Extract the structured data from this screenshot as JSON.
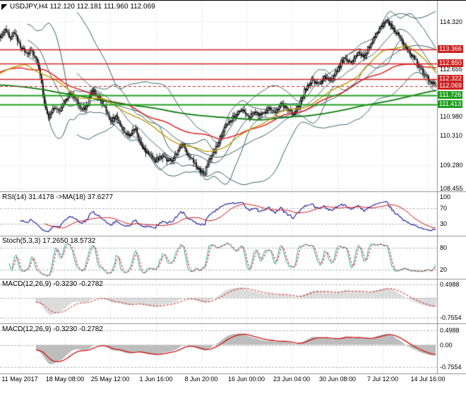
{
  "icons": {
    "cursor_arrow": "◤"
  },
  "colors": {
    "background": "#ffffff",
    "grid": "#d4d4d4",
    "resistance_line": "#cc2222",
    "support_line": "#1f9e1f",
    "bollinger": "#2f5f5f"
  },
  "chart_data": {
    "type": "candlestick",
    "symbol": "USDJPY",
    "timeframe": "H4",
    "platform_header": "USDJPY,H4 112.120 112.181 111.960 112.069",
    "ohlc": {
      "open": "112.120",
      "high": "112.181",
      "low": "111.960",
      "close": "112.069"
    },
    "grid_color": "#d4d4d4",
    "x_axis": {
      "labels": [
        "11 May 2017",
        "18 May 08:00",
        "25 May 12:00",
        "1 Jun 16:00",
        "8 Jun 20:00",
        "16 Jun 00:00",
        "23 Jun 04:00",
        "30 Jun 08:00",
        "7 Jul 12:00",
        "14 Jul 16:00"
      ]
    },
    "main_panel": {
      "bars": 310,
      "y_range": [
        108.35,
        114.95
      ],
      "y_ticks": [
        {
          "label": "114.320",
          "value": 114.32
        },
        {
          "label": "112.655",
          "value": 112.655
        },
        {
          "label": "110.980",
          "value": 110.98
        },
        {
          "label": "110.310",
          "value": 110.31
        },
        {
          "label": "109.280",
          "value": 109.28
        },
        {
          "label": "108.455",
          "value": 108.455
        }
      ],
      "close_keyframes": [
        [
          0.0,
          113.8
        ],
        [
          0.01,
          114.15
        ],
        [
          0.022,
          113.7
        ],
        [
          0.032,
          113.95
        ],
        [
          0.045,
          113.45
        ],
        [
          0.058,
          113.2
        ],
        [
          0.07,
          113.35
        ],
        [
          0.082,
          112.95
        ],
        [
          0.092,
          112.4
        ],
        [
          0.1,
          111.4
        ],
        [
          0.11,
          110.95
        ],
        [
          0.122,
          111.35
        ],
        [
          0.135,
          111.1
        ],
        [
          0.15,
          111.6
        ],
        [
          0.165,
          111.8
        ],
        [
          0.18,
          111.35
        ],
        [
          0.195,
          111.2
        ],
        [
          0.21,
          111.9
        ],
        [
          0.225,
          111.7
        ],
        [
          0.24,
          111.3
        ],
        [
          0.252,
          110.8
        ],
        [
          0.265,
          110.95
        ],
        [
          0.28,
          110.5
        ],
        [
          0.295,
          110.35
        ],
        [
          0.31,
          110.55
        ],
        [
          0.325,
          109.9
        ],
        [
          0.34,
          109.65
        ],
        [
          0.355,
          109.45
        ],
        [
          0.37,
          109.6
        ],
        [
          0.385,
          109.4
        ],
        [
          0.4,
          109.55
        ],
        [
          0.415,
          110.05
        ],
        [
          0.43,
          109.7
        ],
        [
          0.442,
          109.4
        ],
        [
          0.455,
          109.1
        ],
        [
          0.468,
          108.95
        ],
        [
          0.48,
          109.5
        ],
        [
          0.495,
          109.85
        ],
        [
          0.51,
          110.45
        ],
        [
          0.525,
          110.85
        ],
        [
          0.54,
          111.05
        ],
        [
          0.555,
          111.3
        ],
        [
          0.57,
          110.95
        ],
        [
          0.585,
          111.15
        ],
        [
          0.6,
          111.0
        ],
        [
          0.615,
          111.3
        ],
        [
          0.63,
          111.15
        ],
        [
          0.645,
          111.4
        ],
        [
          0.66,
          111.25
        ],
        [
          0.672,
          111.1
        ],
        [
          0.685,
          111.35
        ],
        [
          0.7,
          111.95
        ],
        [
          0.715,
          112.25
        ],
        [
          0.73,
          112.1
        ],
        [
          0.745,
          112.4
        ],
        [
          0.76,
          112.25
        ],
        [
          0.775,
          112.7
        ],
        [
          0.79,
          113.05
        ],
        [
          0.805,
          112.85
        ],
        [
          0.82,
          113.25
        ],
        [
          0.835,
          113.1
        ],
        [
          0.85,
          113.55
        ],
        [
          0.862,
          113.9
        ],
        [
          0.875,
          114.2
        ],
        [
          0.888,
          114.42
        ],
        [
          0.9,
          114.1
        ],
        [
          0.912,
          113.95
        ],
        [
          0.925,
          113.6
        ],
        [
          0.938,
          113.35
        ],
        [
          0.95,
          113.05
        ],
        [
          0.962,
          112.75
        ],
        [
          0.975,
          112.45
        ],
        [
          0.988,
          112.2
        ],
        [
          1.0,
          112.07
        ]
      ],
      "levels": [
        {
          "label": "113.366",
          "value": 113.366,
          "color": "#cc2222",
          "width": 1.4,
          "type": "resistance"
        },
        {
          "label": "112.850",
          "value": 112.85,
          "color": "#cc2222",
          "width": 1.4,
          "type": "resistance"
        },
        {
          "label": "112.322",
          "value": 112.322,
          "color": "#cc2222",
          "width": 1.4,
          "type": "resistance"
        },
        {
          "label": "111.726",
          "value": 111.726,
          "color": "#1f9e1f",
          "width": 2,
          "type": "support"
        },
        {
          "label": "111.413",
          "value": 111.413,
          "color": "#1f9e1f",
          "width": 2,
          "type": "support"
        }
      ],
      "bid": {
        "label": "112.069",
        "value": 112.069,
        "color": "#cc2222"
      },
      "moving_averages": [
        {
          "name": "ma-red",
          "color": "#dd1111",
          "keyframes": [
            [
              0.0,
              112.55
            ],
            [
              0.05,
              112.72
            ],
            [
              0.1,
              112.62
            ],
            [
              0.15,
              112.18
            ],
            [
              0.2,
              111.8
            ],
            [
              0.25,
              111.58
            ],
            [
              0.3,
              111.32
            ],
            [
              0.35,
              110.95
            ],
            [
              0.4,
              110.62
            ],
            [
              0.45,
              110.38
            ],
            [
              0.5,
              110.22
            ],
            [
              0.55,
              110.35
            ],
            [
              0.6,
              110.68
            ],
            [
              0.65,
              111.0
            ],
            [
              0.7,
              111.25
            ],
            [
              0.75,
              111.6
            ],
            [
              0.8,
              112.0
            ],
            [
              0.85,
              112.4
            ],
            [
              0.9,
              112.72
            ],
            [
              0.95,
              112.85
            ],
            [
              1.0,
              112.68
            ]
          ]
        },
        {
          "name": "ma-green",
          "color": "#0b7a0b",
          "keyframes": [
            [
              0.0,
              112.1
            ],
            [
              0.1,
              111.95
            ],
            [
              0.2,
              111.65
            ],
            [
              0.3,
              111.4
            ],
            [
              0.4,
              111.15
            ],
            [
              0.5,
              110.95
            ],
            [
              0.6,
              110.88
            ],
            [
              0.7,
              111.0
            ],
            [
              0.8,
              111.25
            ],
            [
              0.9,
              111.58
            ],
            [
              1.0,
              111.9
            ]
          ]
        },
        {
          "name": "ma-yellow",
          "color": "#c09a00",
          "keyframes": [
            [
              0.0,
              112.5
            ],
            [
              0.06,
              112.85
            ],
            [
              0.12,
              112.3
            ],
            [
              0.18,
              111.7
            ],
            [
              0.24,
              111.55
            ],
            [
              0.3,
              111.1
            ],
            [
              0.36,
              110.5
            ],
            [
              0.42,
              109.95
            ],
            [
              0.47,
              109.75
            ],
            [
              0.52,
              109.95
            ],
            [
              0.58,
              110.6
            ],
            [
              0.64,
              111.1
            ],
            [
              0.7,
              111.35
            ],
            [
              0.76,
              111.85
            ],
            [
              0.82,
              112.45
            ],
            [
              0.88,
              113.3
            ],
            [
              0.93,
              113.55
            ],
            [
              0.97,
              113.0
            ],
            [
              1.0,
              112.55
            ]
          ]
        }
      ],
      "bollinger_bands": [
        {
          "period": 20,
          "deviation": 2
        },
        {
          "period": 55,
          "deviation": 2
        }
      ],
      "bollinger_color": "#2f5f5f",
      "candle_up_color": "#ffffff",
      "candle_down_color": "#000000"
    },
    "rsi_panel": {
      "label": "RSI(14) 31.4178 ->MA(18) 37.6277",
      "period": 14,
      "ma_period": 18,
      "last_value": 31.4178,
      "ma_last_value": 37.6277,
      "line_color": "#24249c",
      "ma_color": "#cc1111",
      "levels": [
        70,
        30
      ],
      "y_ticks": [
        {
          "label": "100",
          "value": 100
        },
        {
          "label": "70",
          "value": 70
        },
        {
          "label": "30",
          "value": 30
        }
      ]
    },
    "stoch_panel": {
      "label": "Stoch(5,3,3) 17.2650 18.5732",
      "k_period": 5,
      "slowing": 3,
      "d_period": 3,
      "last_k": 17.265,
      "last_d": 18.5732,
      "k_color": "#26a69a",
      "d_color": "#cc1111",
      "levels": [
        80,
        20
      ],
      "y_ticks": [
        {
          "label": "80",
          "value": 80
        },
        {
          "label": "20",
          "value": 20
        }
      ]
    },
    "macd_panel_1": {
      "label": "MACD(12,26,9) -0.3230 -0.2782",
      "fast": 12,
      "slow": 26,
      "signal": 9,
      "last_macd": -0.323,
      "last_signal": -0.2782,
      "hist_color": "#b9b9b9",
      "signal_color": "#cc1111",
      "y_ticks": [
        {
          "label": "0.4988",
          "value": 0.4988
        },
        {
          "label": "-0.7554",
          "value": -0.7554
        }
      ]
    },
    "macd_panel_2": {
      "label": "MACD(12,26,9) -0.3230 -0.2782",
      "fast": 12,
      "slow": 26,
      "signal": 9,
      "fill_color": "#bdbdbd",
      "signal_color": "#cc1111",
      "y_ticks": [
        {
          "label": "0.4988",
          "value": 0.4988
        },
        {
          "label": "0.00",
          "value": 0
        },
        {
          "label": "-0.7554",
          "value": -0.7554
        }
      ]
    }
  }
}
